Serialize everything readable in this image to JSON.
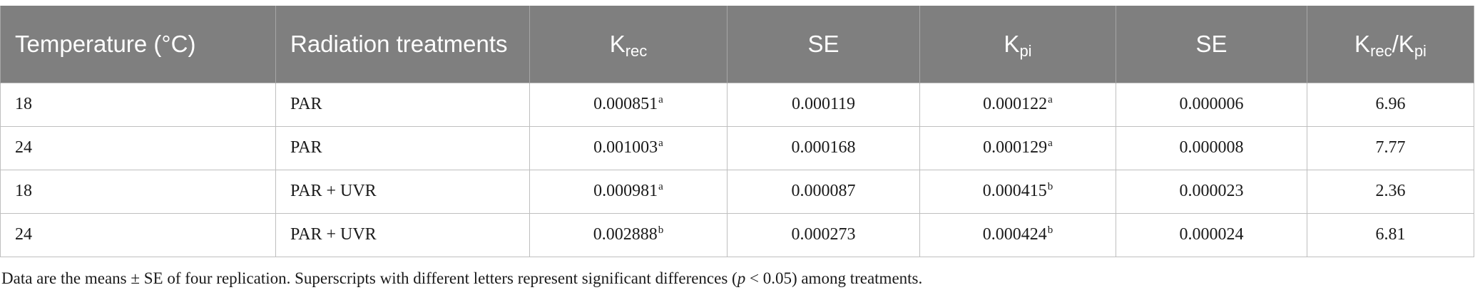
{
  "table": {
    "headers": [
      {
        "text": "Temperature (°C)",
        "sub": "",
        "text2": "",
        "sub2": ""
      },
      {
        "text": "Radiation treatments",
        "sub": "",
        "text2": "",
        "sub2": ""
      },
      {
        "text": "K",
        "sub": "rec",
        "text2": "",
        "sub2": ""
      },
      {
        "text": "SE",
        "sub": "",
        "text2": "",
        "sub2": ""
      },
      {
        "text": "K",
        "sub": "pi",
        "text2": "",
        "sub2": ""
      },
      {
        "text": "SE",
        "sub": "",
        "text2": "",
        "sub2": ""
      },
      {
        "text": "K",
        "sub": "rec",
        "text2": "/K",
        "sub2": "pi"
      }
    ],
    "rows": [
      {
        "temperature": "18",
        "treatment": "PAR",
        "krec": "0.000851",
        "krec_sup": "a",
        "se1": "0.000119",
        "kpi": "0.000122",
        "kpi_sup": "a",
        "se2": "0.000006",
        "ratio": "6.96"
      },
      {
        "temperature": "24",
        "treatment": "PAR",
        "krec": "0.001003",
        "krec_sup": "a",
        "se1": "0.000168",
        "kpi": "0.000129",
        "kpi_sup": "a",
        "se2": "0.000008",
        "ratio": "7.77"
      },
      {
        "temperature": "18",
        "treatment": "PAR + UVR",
        "krec": "0.000981",
        "krec_sup": "a",
        "se1": "0.000087",
        "kpi": "0.000415",
        "kpi_sup": "b",
        "se2": "0.000023",
        "ratio": "2.36"
      },
      {
        "temperature": "24",
        "treatment": "PAR + UVR",
        "krec": "0.002888",
        "krec_sup": "b",
        "se1": "0.000273",
        "kpi": "0.000424",
        "kpi_sup": "b",
        "se2": "0.000024",
        "ratio": "6.81"
      }
    ]
  },
  "footnote": {
    "before": "Data are the means ± SE of four replication. Superscripts with different letters represent significant differences (",
    "italic": "p",
    "after": " < 0.05) among treatments."
  }
}
